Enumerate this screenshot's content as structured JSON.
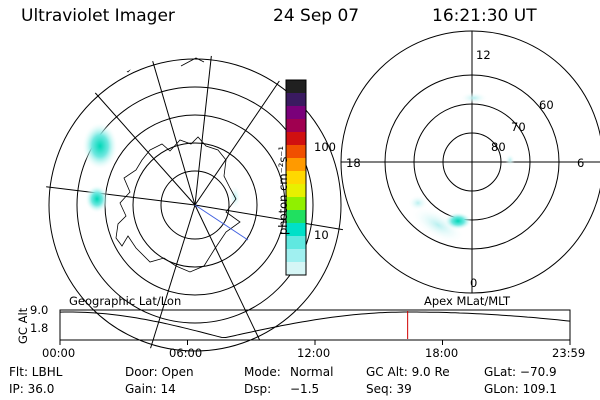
{
  "header": {
    "title": "Ultraviolet Imager",
    "date": "24 Sep 07",
    "time": "16:21:30 UT"
  },
  "colorbar": {
    "label": "photon cm⁻²s⁻¹",
    "ticks": [
      "100",
      "10"
    ],
    "colors": [
      "#202020",
      "#3a1a60",
      "#7a007a",
      "#a00050",
      "#d01010",
      "#f05000",
      "#ff9a00",
      "#ffd800",
      "#e8f000",
      "#90f000",
      "#20e060",
      "#00e0c8",
      "#60e8e0",
      "#a0f0f0",
      "#d6f6f6"
    ]
  },
  "polar_plot": {
    "ring_labels": [
      "60",
      "70",
      "80"
    ],
    "mlt_labels": {
      "top": "12",
      "bottom": "0",
      "left": "18",
      "right": "6"
    }
  },
  "timeline": {
    "left_title": "Geographic Lat/Lon",
    "right_title": "Apex MLat/MLT",
    "axis_label": "GC Alt",
    "y_ticks": [
      "9.0",
      "1.8"
    ],
    "time_ticks": [
      "00:00",
      "06:00",
      "12:00",
      "18:00",
      "23:59"
    ],
    "current_time_hours": 16.36,
    "marker_color": "#d00000"
  },
  "info": {
    "filter": "Flt: LBHL",
    "door": "Door: Open",
    "mode_label": "Mode:",
    "mode_value": "Normal",
    "gc_alt": "GC Alt: 9.0 Re",
    "glat": "GLat: −70.9",
    "ip": "IP: 36.0",
    "gain": "Gain: 14",
    "dsp_label": "Dsp:",
    "dsp_value": "−1.5",
    "seq": "Seq: 39",
    "glon": "GLon: 109.1"
  }
}
